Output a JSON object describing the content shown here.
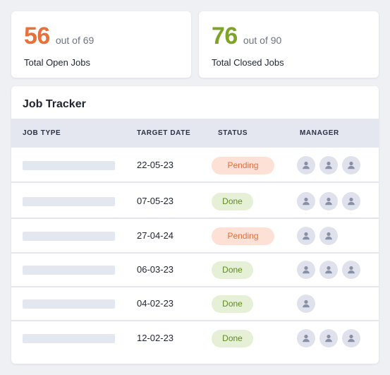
{
  "summary": {
    "open": {
      "count": "56",
      "of_text": "out of 69",
      "label": "Total Open Jobs"
    },
    "closed": {
      "count": "76",
      "of_text": "out of 90",
      "label": "Total Closed Jobs"
    }
  },
  "colors": {
    "open_accent": "#e8703a",
    "closed_accent": "#7ea325",
    "pending_bg": "#fde0d6",
    "done_bg": "#e6f0d6"
  },
  "tracker": {
    "title": "Job Tracker",
    "columns": [
      "JOB TYPE",
      "TARGET DATE",
      "STATUS",
      "MANAGER"
    ],
    "rows": [
      {
        "date": "22-05-23",
        "status": "Pending",
        "status_kind": "pending",
        "managers": 3
      },
      {
        "date": "07-05-23",
        "status": "Done",
        "status_kind": "done",
        "managers": 3
      },
      {
        "date": "27-04-24",
        "status": "Pending",
        "status_kind": "pending",
        "managers": 2
      },
      {
        "date": "06-03-23",
        "status": "Done",
        "status_kind": "done",
        "managers": 3
      },
      {
        "date": "04-02-23",
        "status": "Done",
        "status_kind": "done",
        "managers": 1
      },
      {
        "date": "12-02-23",
        "status": "Done",
        "status_kind": "done",
        "managers": 3
      }
    ],
    "manager_icon": "user-icon"
  }
}
